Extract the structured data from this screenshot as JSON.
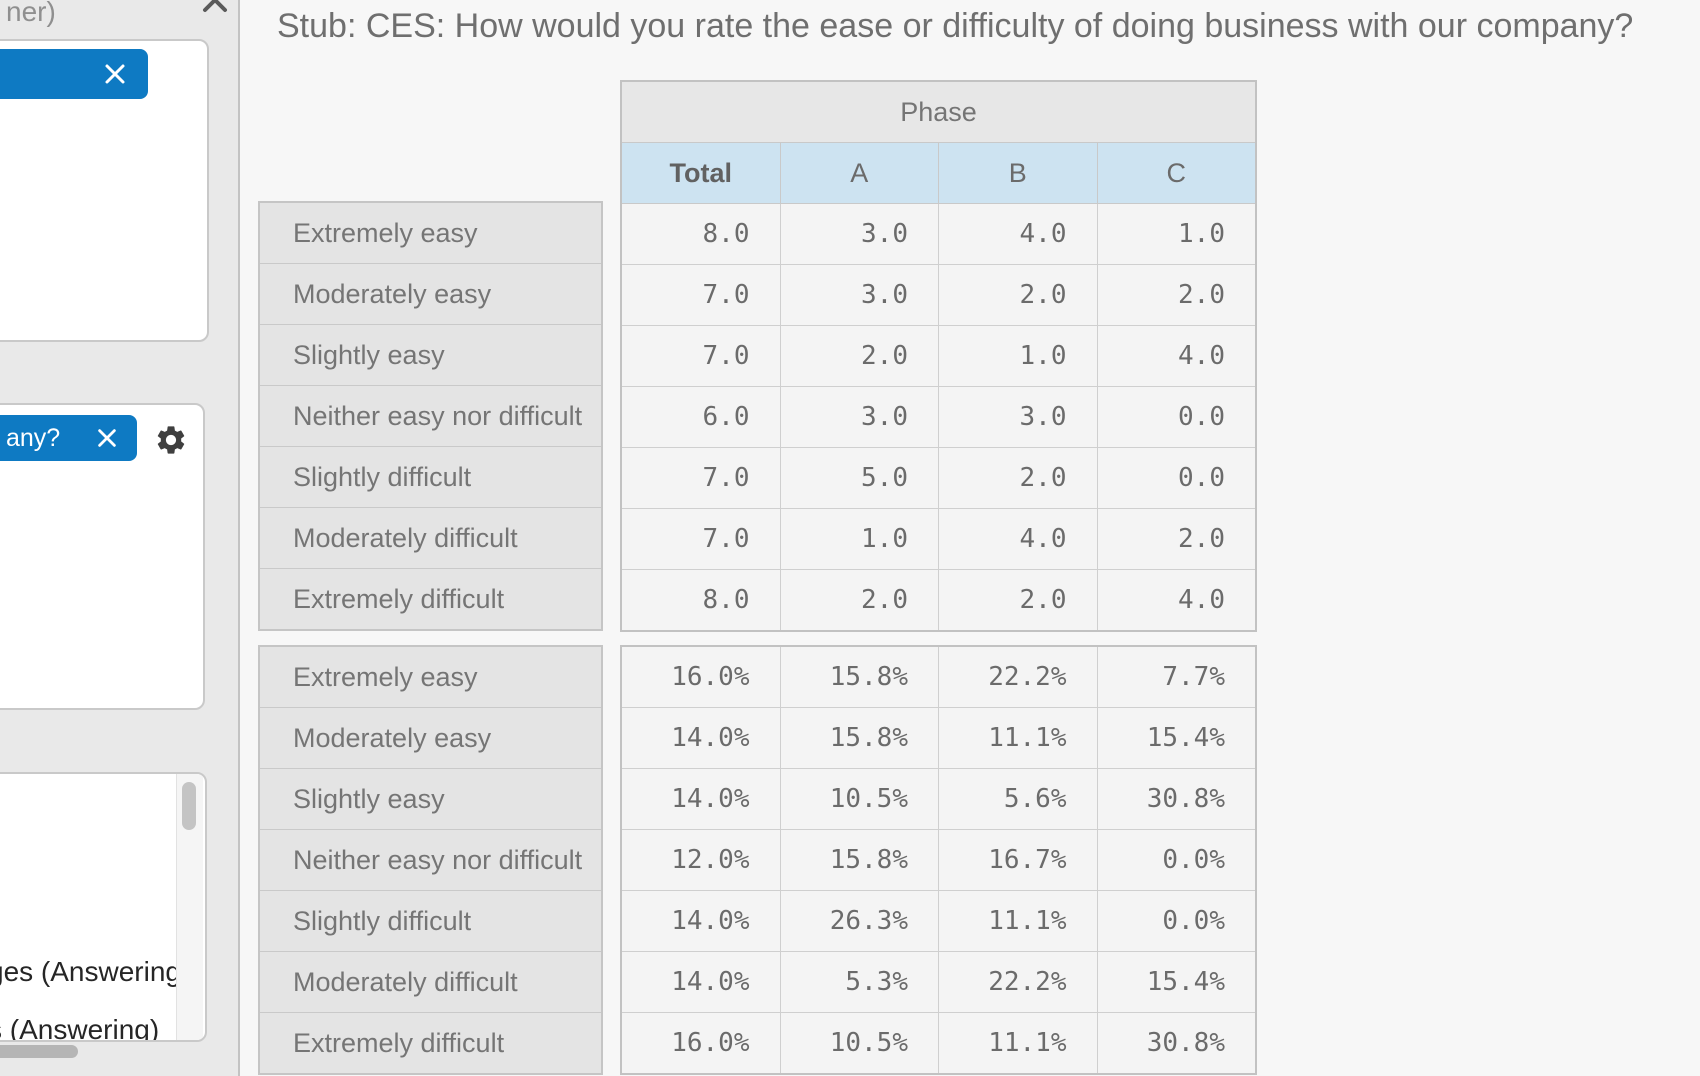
{
  "colors": {
    "accent_blue": "#0e7ac3",
    "subheader_blue": "#cde3f1",
    "panel_bg": "#e9e9e9",
    "main_bg": "#f7f7f7",
    "group_header_bg": "#e7e7e7",
    "row_label_bg": "#e4e4e4",
    "value_cell_bg": "#f4f4f4",
    "text_gray": "#757575"
  },
  "left_panel": {
    "header_truncated": "ner)",
    "card1": {
      "chip_label": "",
      "chip_close": "close"
    },
    "card2": {
      "chip_label": "any?",
      "chip_close": "close",
      "gear": "settings"
    },
    "card3": {
      "items": [
        "ges (Answering",
        "s (Answering)"
      ]
    }
  },
  "main": {
    "title": "Stub: CES: How would you rate the ease or difficulty of doing business with our company?",
    "table": {
      "group_header": "Phase",
      "columns": [
        "Total",
        "A",
        "B",
        "C"
      ],
      "row_labels": [
        "Extremely easy",
        "Moderately easy",
        "Slightly easy",
        "Neither easy nor difficult",
        "Slightly difficult",
        "Moderately difficult",
        "Extremely difficult"
      ],
      "counts": [
        [
          "8.0",
          "3.0",
          "4.0",
          "1.0"
        ],
        [
          "7.0",
          "3.0",
          "2.0",
          "2.0"
        ],
        [
          "7.0",
          "2.0",
          "1.0",
          "4.0"
        ],
        [
          "6.0",
          "3.0",
          "3.0",
          "0.0"
        ],
        [
          "7.0",
          "5.0",
          "2.0",
          "0.0"
        ],
        [
          "7.0",
          "1.0",
          "4.0",
          "2.0"
        ],
        [
          "8.0",
          "2.0",
          "2.0",
          "4.0"
        ]
      ],
      "percentages": [
        [
          "16.0%",
          "15.8%",
          "22.2%",
          "7.7%"
        ],
        [
          "14.0%",
          "15.8%",
          "11.1%",
          "15.4%"
        ],
        [
          "14.0%",
          "10.5%",
          "5.6%",
          "30.8%"
        ],
        [
          "12.0%",
          "15.8%",
          "16.7%",
          "0.0%"
        ],
        [
          "14.0%",
          "26.3%",
          "11.1%",
          "0.0%"
        ],
        [
          "14.0%",
          "5.3%",
          "22.2%",
          "15.4%"
        ],
        [
          "16.0%",
          "10.5%",
          "11.1%",
          "30.8%"
        ]
      ]
    }
  }
}
